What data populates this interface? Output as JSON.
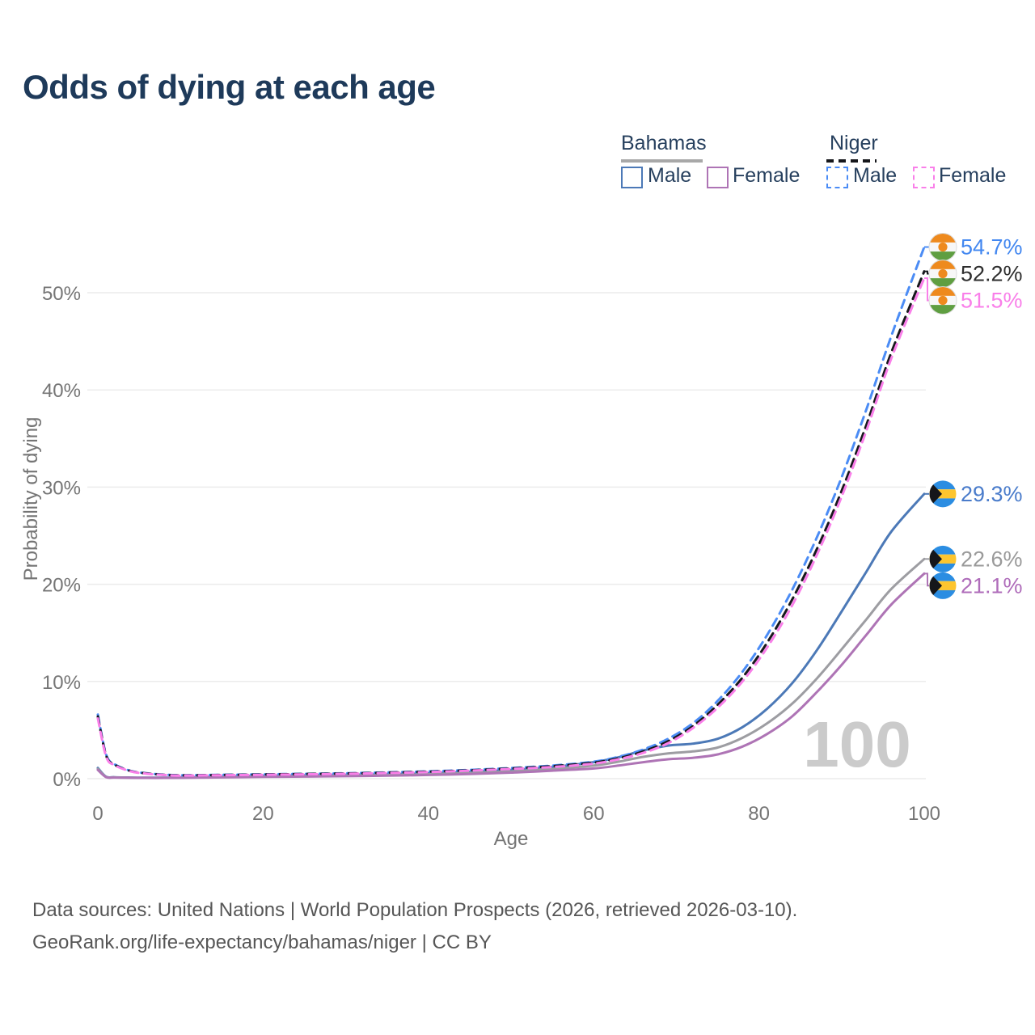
{
  "header": {
    "title": "Odds of dying at each age"
  },
  "legend": {
    "groups": [
      {
        "country": "Bahamas",
        "line_style": "solid",
        "underline_color": "#a8a8a8",
        "items": [
          {
            "label": "Male",
            "color": "#4c79b7"
          },
          {
            "label": "Female",
            "color": "#ae74b5"
          }
        ]
      },
      {
        "country": "Niger",
        "line_style": "dashed",
        "underline_color": "#15161a",
        "items": [
          {
            "label": "Male",
            "color": "#4b8cf5"
          },
          {
            "label": "Female",
            "color": "#f97fe9"
          }
        ]
      }
    ]
  },
  "chart_data": {
    "type": "line",
    "title": "Odds of dying at each age",
    "xlabel": "Age",
    "ylabel": "Probability of dying",
    "watermark": "100",
    "grid": true,
    "grid_color": "#ececec",
    "axis_text_color": "#757575",
    "watermark_color": "#cbcbcb",
    "xlim": [
      0,
      100
    ],
    "ylim": [
      0,
      57
    ],
    "x_ticks": [
      0,
      20,
      40,
      60,
      80,
      100
    ],
    "y_ticks": [
      "0%",
      "10%",
      "20%",
      "30%",
      "40%",
      "50%"
    ],
    "y_tick_values": [
      0,
      10,
      20,
      30,
      40,
      50
    ],
    "legend_position": "top-right",
    "ages": [
      0,
      1,
      2,
      4,
      6,
      8,
      10,
      15,
      20,
      25,
      30,
      35,
      40,
      45,
      50,
      55,
      60,
      63,
      66,
      69,
      72,
      75,
      78,
      81,
      84,
      87,
      90,
      93,
      96,
      100
    ],
    "series": [
      {
        "name": "Bahamas Male",
        "country": "Bahamas",
        "sex": "Male",
        "line_color": "#4c79b7",
        "label_color": "#4a7ccb",
        "dash": null,
        "flag": "bahamas",
        "end_label": "29.3%",
        "end_value": 29.3,
        "values": [
          1.1,
          0.2,
          0.15,
          0.12,
          0.1,
          0.1,
          0.12,
          0.2,
          0.3,
          0.35,
          0.4,
          0.45,
          0.55,
          0.7,
          0.9,
          1.2,
          1.7,
          2.2,
          2.9,
          3.4,
          3.6,
          4.1,
          5.3,
          7.2,
          9.8,
          13.2,
          17.2,
          21.3,
          25.4,
          29.3
        ]
      },
      {
        "name": "Bahamas Both sexes",
        "country": "Bahamas",
        "sex": "Both",
        "line_color": "#9d9da2",
        "label_color": "#9a9a9a",
        "dash": null,
        "flag": "bahamas",
        "end_label": "22.6%",
        "end_value": 22.6,
        "values": [
          1.0,
          0.18,
          0.13,
          0.1,
          0.09,
          0.09,
          0.1,
          0.16,
          0.24,
          0.28,
          0.33,
          0.38,
          0.46,
          0.58,
          0.75,
          1.0,
          1.35,
          1.75,
          2.25,
          2.6,
          2.8,
          3.2,
          4.2,
          5.7,
          7.7,
          10.3,
          13.3,
          16.4,
          19.5,
          22.6
        ]
      },
      {
        "name": "Bahamas Female",
        "country": "Bahamas",
        "sex": "Female",
        "line_color": "#ae74b5",
        "label_color": "#af6cba",
        "dash": null,
        "flag": "bahamas",
        "end_label": "21.1%",
        "end_value": 21.1,
        "values": [
          0.9,
          0.16,
          0.12,
          0.09,
          0.08,
          0.08,
          0.09,
          0.13,
          0.18,
          0.22,
          0.26,
          0.31,
          0.38,
          0.48,
          0.62,
          0.82,
          1.05,
          1.35,
          1.7,
          2.0,
          2.15,
          2.5,
          3.3,
          4.6,
          6.4,
          8.9,
          11.7,
          14.8,
          17.9,
          21.1
        ]
      },
      {
        "name": "Niger Male",
        "country": "Niger",
        "sex": "Male",
        "line_color": "#4b8cf5",
        "label_color": "#4287f0",
        "dash": "10 7",
        "flag": "niger",
        "end_label": "54.7%",
        "end_value": 54.7,
        "values": [
          6.6,
          2.5,
          1.5,
          0.8,
          0.55,
          0.42,
          0.36,
          0.4,
          0.45,
          0.5,
          0.56,
          0.65,
          0.76,
          0.9,
          1.1,
          1.35,
          1.75,
          2.25,
          3.0,
          4.1,
          5.7,
          8.0,
          11.0,
          14.8,
          19.4,
          24.8,
          31.0,
          38.0,
          45.5,
          54.7
        ]
      },
      {
        "name": "Niger Both sexes",
        "country": "Niger",
        "sex": "Both",
        "line_color": "#17181c",
        "label_color": "#2e2e2e",
        "dash": "10 7",
        "flag": "niger",
        "end_label": "52.2%",
        "end_value": 52.2,
        "values": [
          6.4,
          2.4,
          1.45,
          0.77,
          0.53,
          0.4,
          0.34,
          0.38,
          0.43,
          0.48,
          0.53,
          0.62,
          0.72,
          0.86,
          1.05,
          1.28,
          1.65,
          2.1,
          2.8,
          3.85,
          5.4,
          7.6,
          10.4,
          14.0,
          18.4,
          23.6,
          29.6,
          36.4,
          43.8,
          52.2
        ]
      },
      {
        "name": "Niger Female",
        "country": "Niger",
        "sex": "Female",
        "line_color": "#f97fe9",
        "label_color": "#f97fe9",
        "dash": "10 7",
        "flag": "niger",
        "end_label": "51.5%",
        "end_value": 51.5,
        "values": [
          6.2,
          2.3,
          1.4,
          0.75,
          0.5,
          0.38,
          0.32,
          0.36,
          0.4,
          0.45,
          0.5,
          0.58,
          0.68,
          0.82,
          1.0,
          1.2,
          1.55,
          2.0,
          2.65,
          3.65,
          5.2,
          7.3,
          10.0,
          13.5,
          17.8,
          23.0,
          29.0,
          35.8,
          43.2,
          51.5
        ]
      }
    ],
    "flag_colors": {
      "niger": {
        "band_top": "#ee8a1e",
        "band_mid": "#f7f7f7",
        "band_bottom": "#5f9e41",
        "roundel": "#ee8a1e",
        "ring": "#d9d9d9"
      },
      "bahamas": {
        "band_top": "#2b8de2",
        "band_mid": "#fdc52f",
        "band_bottom": "#2b8de2",
        "chevron": "#15161a"
      }
    }
  },
  "footer": {
    "line1": "Data sources: United Nations | World Population Prospects (2026, retrieved 2026-03-10).",
    "line2": "GeoRank.org/life-expectancy/bahamas/niger | CC BY"
  }
}
